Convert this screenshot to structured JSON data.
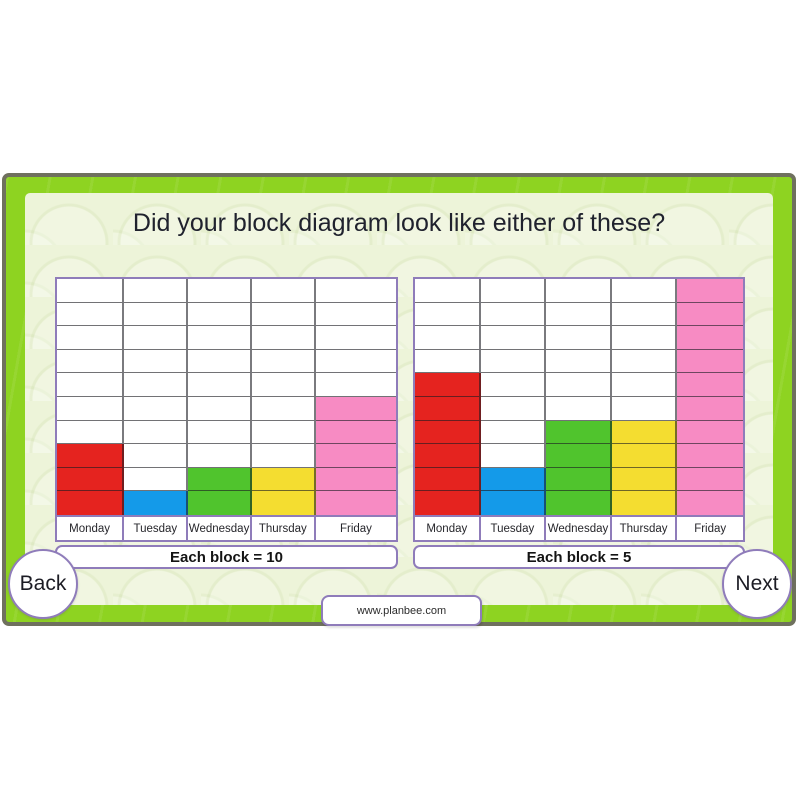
{
  "title": "Did your block diagram look like either of these?",
  "nav": {
    "back_label": "Back",
    "next_label": "Next"
  },
  "footer": {
    "link": "www.planbee.com"
  },
  "colors": {
    "frame_green": "#8ed321",
    "frame_outline": "#6f705e",
    "panel_bg": "#edf4d9",
    "border_purple": "#8f7cba",
    "bar_red": "#e5231f",
    "bar_blue": "#149ae9",
    "bar_green": "#50c42d",
    "bar_yellow": "#f4dd30",
    "bar_pink": "#f78bc3"
  },
  "chart_data": [
    {
      "type": "bar",
      "variant": "block-diagram",
      "caption": "Each block = 10",
      "block_value": 10,
      "rows": 10,
      "grid": true,
      "legend": "none",
      "ylim": [
        0,
        100
      ],
      "categories": [
        "Monday",
        "Tuesday",
        "Wednesday",
        "Thursday",
        "Friday"
      ],
      "values": [
        30,
        10,
        20,
        20,
        50
      ],
      "blocks": [
        3,
        1,
        2,
        2,
        5
      ],
      "bar_colors": [
        "#e5231f",
        "#149ae9",
        "#50c42d",
        "#f4dd30",
        "#f78bc3"
      ],
      "col_fr": [
        68,
        65,
        64,
        65,
        81
      ]
    },
    {
      "type": "bar",
      "variant": "block-diagram",
      "caption": "Each block = 5",
      "block_value": 5,
      "rows": 10,
      "grid": true,
      "legend": "none",
      "ylim": [
        0,
        50
      ],
      "categories": [
        "Monday",
        "Tuesday",
        "Wednesday",
        "Thursday",
        "Friday"
      ],
      "values": [
        30,
        10,
        20,
        20,
        50
      ],
      "blocks": [
        6,
        2,
        4,
        4,
        10
      ],
      "bar_colors": [
        "#e5231f",
        "#149ae9",
        "#50c42d",
        "#f4dd30",
        "#f78bc3"
      ],
      "col_fr": [
        66,
        66,
        66,
        66,
        66
      ]
    }
  ]
}
